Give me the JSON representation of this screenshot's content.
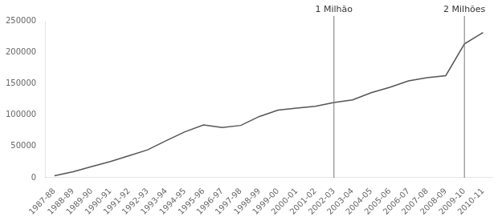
{
  "chart_data": {
    "type": "line",
    "categories": [
      "1987-88",
      "1988-89",
      "1989-90",
      "1990-91",
      "1991-92",
      "1992-93",
      "1993-94",
      "1994-95",
      "1995-96",
      "1996-97",
      "1997-98",
      "1998-99",
      "1999-00",
      "2000-01",
      "2001-02",
      "2002-03",
      "2003-04",
      "2004-05",
      "2005-06",
      "2006-07",
      "2007-08",
      "2008-09",
      "2009-10",
      "2010-11"
    ],
    "values": [
      3244,
      9419,
      17814,
      25785,
      35049,
      44415,
      59050,
      73143,
      84146,
      79957,
      83347,
      97639,
      107666,
      111092,
      113735,
      120000,
      123957,
      135586,
      144037,
      154421,
      159324,
      162695,
      213266,
      231410
    ],
    "color": "#555555",
    "annotations": [
      {
        "x": "2002-03",
        "label": "1 Milhão",
        "color": "#777777"
      },
      {
        "x": "2009-10",
        "label": "2 Milhões",
        "color": "#777777"
      }
    ],
    "ylim": [
      0,
      250000
    ],
    "yticks": [
      0,
      50000,
      100000,
      150000,
      200000,
      250000
    ],
    "grid": false
  }
}
